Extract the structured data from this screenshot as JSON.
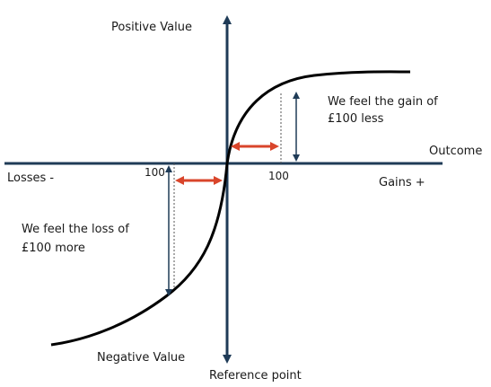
{
  "axes": {
    "y_top_label": "Positive Value",
    "y_bottom_label": "Negative Value",
    "x_right_label": "Outcome",
    "x_left_label": "Losses -",
    "gains_label": "Gains +",
    "origin_label": "Reference point"
  },
  "ticks": {
    "gain_tick": "100",
    "loss_tick": "100"
  },
  "annotations": {
    "gain_note_line1": "We feel the gain of",
    "gain_note_line2": "£100  less",
    "loss_note_line1": "We feel the loss of",
    "loss_note_line2": "£100  more"
  },
  "colors": {
    "axis": "#1f3b57",
    "curve": "#000000",
    "highlight_arrow": "#d9452b"
  }
}
